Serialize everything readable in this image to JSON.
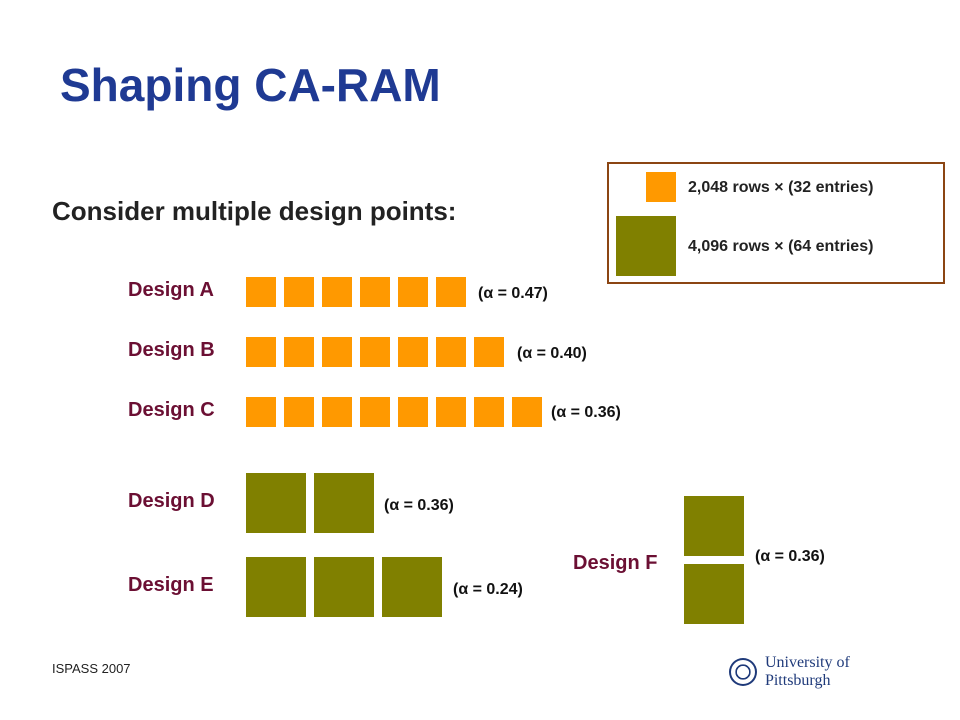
{
  "slide": {
    "title": "Shaping CA-RAM",
    "subtitle": "Consider multiple design points:",
    "footer": "ISPASS 2007",
    "logo_text": "University of Pittsburgh"
  },
  "legend": {
    "small_label": "2,048 rows × (32 entries)",
    "large_label": "4,096 rows × (64 entries)"
  },
  "colors": {
    "small_block": "#ff9900",
    "large_block": "#808000",
    "title": "#1f3a93",
    "design_label": "#6b0f33"
  },
  "designs": [
    {
      "label": "Design A",
      "alpha": "(α = 0.47)",
      "block_type": "small",
      "count": 6
    },
    {
      "label": "Design B",
      "alpha": "(α = 0.40)",
      "block_type": "small",
      "count": 7
    },
    {
      "label": "Design C",
      "alpha": "(α = 0.36)",
      "block_type": "small",
      "count": 8
    },
    {
      "label": "Design D",
      "alpha": "(α = 0.36)",
      "block_type": "large",
      "count": 2
    },
    {
      "label": "Design E",
      "alpha": "(α = 0.24)",
      "block_type": "large",
      "count": 3
    },
    {
      "label": "Design F",
      "alpha": "(α = 0.36)",
      "block_type": "large",
      "count": 2,
      "arrangement": "vertical"
    }
  ]
}
